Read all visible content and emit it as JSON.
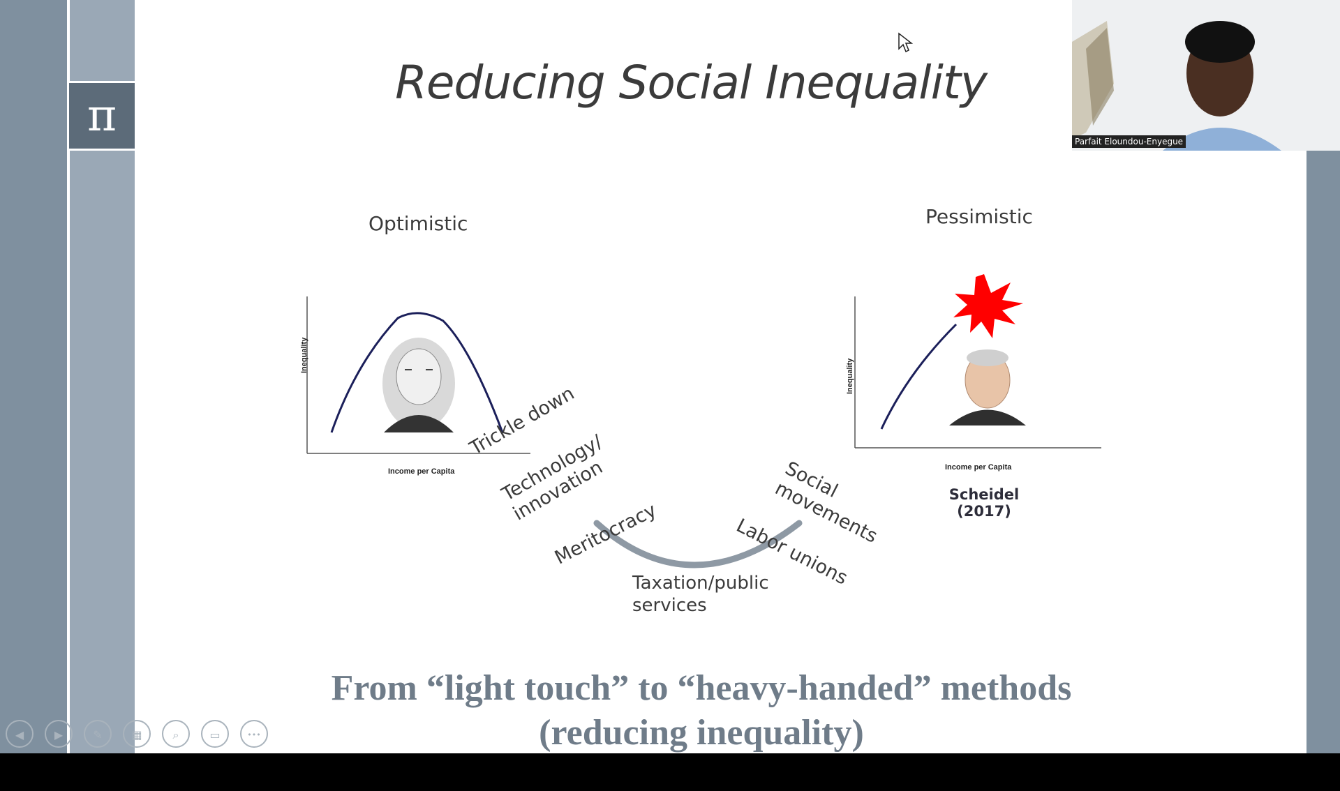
{
  "slide": {
    "title": "Reducing Social Inequality",
    "pi_symbol": "π",
    "optimistic_label": "Optimistic",
    "pessimistic_label": "Pessimistic",
    "left_chart": {
      "ylabel": "Inequality",
      "xlabel": "Income per Capita"
    },
    "right_chart": {
      "ylabel": "Inequality",
      "xlabel": "Income per Capita",
      "citation": "Scheidel (2017)"
    },
    "arc_labels": {
      "trickle_down": "Trickle down",
      "technology_line1": "Technology/",
      "technology_line2": "innovation",
      "meritocracy": "Meritocracy",
      "taxation_line1": "Taxation/public",
      "taxation_line2": "services",
      "labor_unions": "Labor unions",
      "social_line1": "Social",
      "social_line2": "movements"
    },
    "bottom_line1": "From “light touch” to “heavy-handed” methods",
    "bottom_line2": "(reducing inequality)"
  },
  "video": {
    "participant_name": "Parfait Eloundou-Enyegue"
  },
  "controls": [
    {
      "name": "previous-slide",
      "icon": "prev-icon",
      "glyph": "◀"
    },
    {
      "name": "next-slide",
      "icon": "next-icon",
      "glyph": "▶"
    },
    {
      "name": "pen",
      "icon": "pen-icon",
      "glyph": "✎"
    },
    {
      "name": "see-all-slides",
      "icon": "grid-icon",
      "glyph": "▦"
    },
    {
      "name": "zoom",
      "icon": "zoom-icon",
      "glyph": "⌕"
    },
    {
      "name": "subtitles",
      "icon": "subtitles-icon",
      "glyph": "▭"
    },
    {
      "name": "more-options",
      "icon": "more-icon",
      "glyph": "•••"
    }
  ],
  "colors": {
    "curve": "#1b1f5a",
    "arc": "#8e99a4",
    "explosion": "#ff0000",
    "bottom_text": "#6f7c89"
  }
}
